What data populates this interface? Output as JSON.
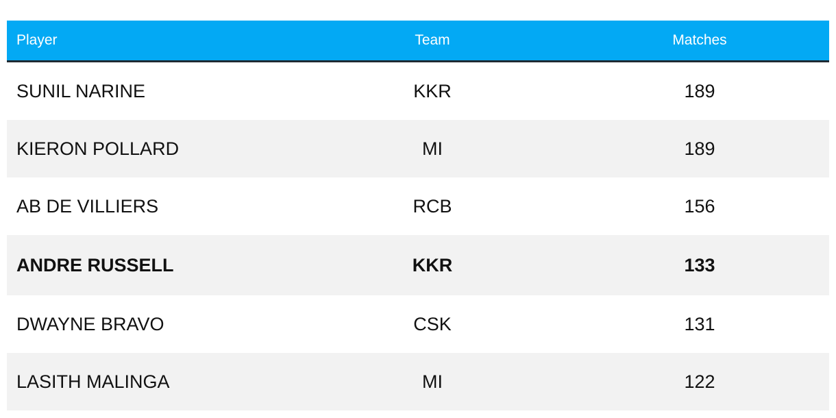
{
  "table": {
    "header": [
      "Player",
      "Team",
      "Matches"
    ],
    "rows": [
      [
        "SUNIL NARINE",
        "KKR",
        189
      ],
      [
        "KIERON POLLARD",
        "MI",
        189
      ],
      [
        "AB DE VILLIERS",
        "RCB",
        156
      ],
      [
        "ANDRE RUSSELL",
        "KKR",
        133
      ],
      [
        "DWAYNE BRAVO",
        "CSK",
        131
      ],
      [
        "LASITH MALINGA",
        "MI",
        122
      ]
    ],
    "highlight_row": 3,
    "header_color": "#03a9f4",
    "stripe_color": "#f2f2f2"
  }
}
